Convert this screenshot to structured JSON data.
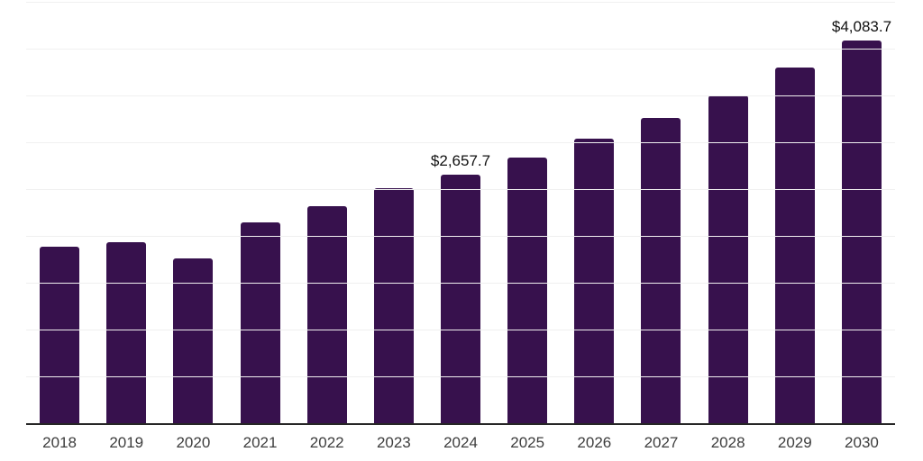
{
  "chart_data": {
    "type": "bar",
    "title": "",
    "xlabel": "",
    "ylabel": "",
    "categories": [
      "2018",
      "2019",
      "2020",
      "2021",
      "2022",
      "2023",
      "2024",
      "2025",
      "2026",
      "2027",
      "2028",
      "2029",
      "2030"
    ],
    "values": [
      1885,
      1930,
      1757,
      2147,
      2315,
      2507,
      2657.7,
      2837,
      3039,
      3260,
      3503,
      3795,
      4083.7
    ],
    "data_labels": {
      "2024": "$2,657.7",
      "2030": "$4,083.7"
    },
    "ylim": [
      0,
      4500
    ],
    "gridline_step": 500,
    "grid": true,
    "legend": "none",
    "y_axis_labels_visible": false,
    "bar_color": "#37114d",
    "axis_color": "#262626",
    "gridline_color": "#f0f0f0",
    "tick_label_color": "#3d3d3d",
    "data_label_color": "#111111"
  }
}
